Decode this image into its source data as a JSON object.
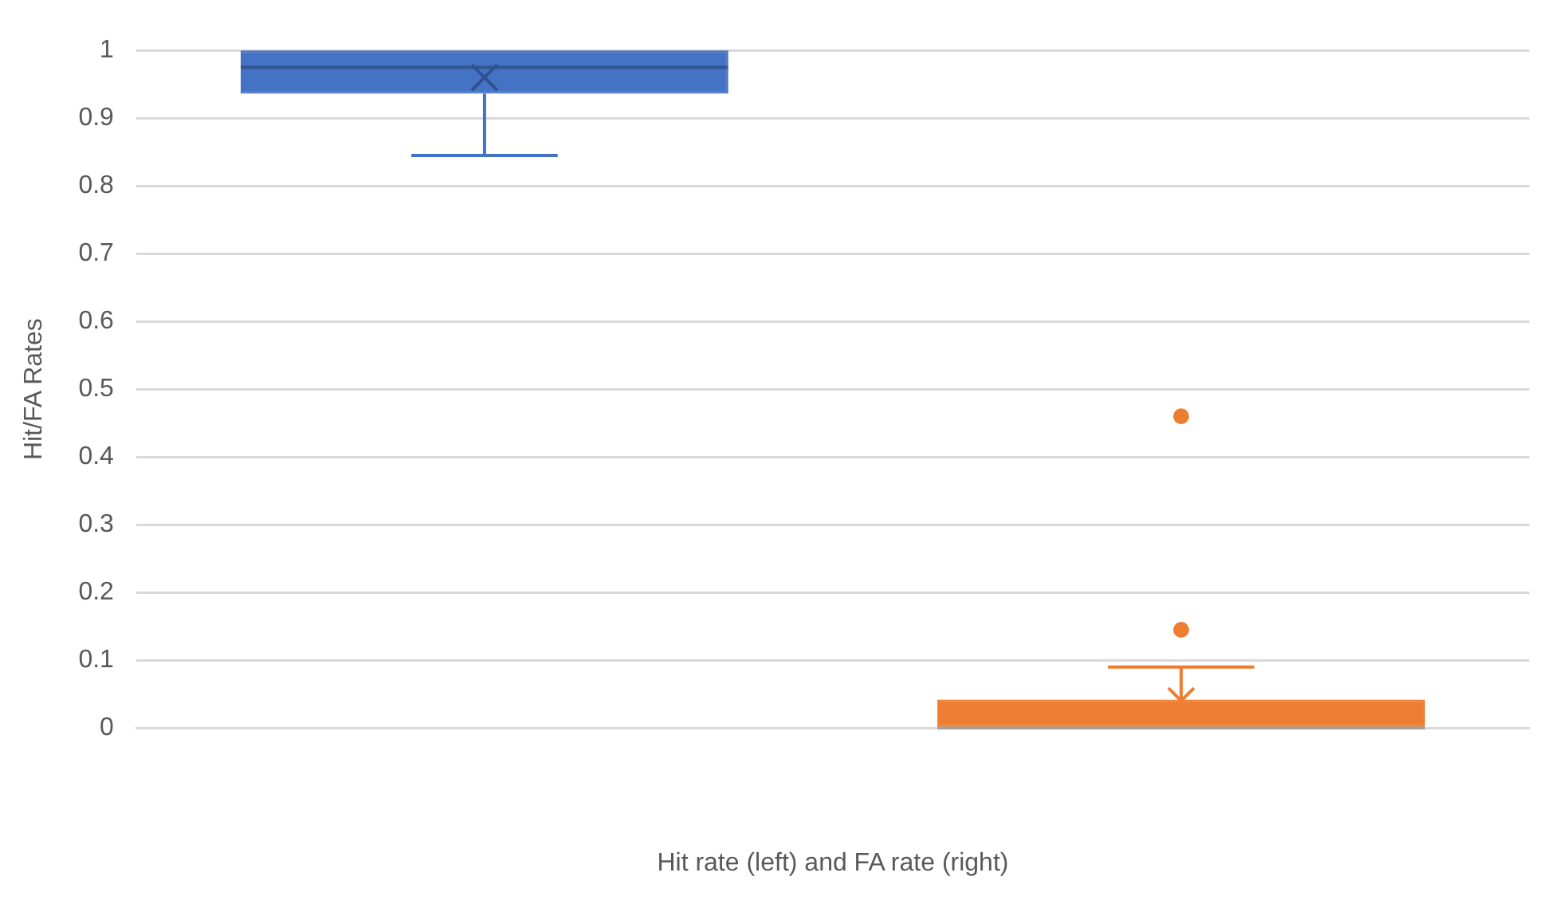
{
  "chart_data": {
    "type": "box",
    "xlabel": "Hit rate (left) and FA rate (right)",
    "ylabel": "Hit/FA Rates",
    "categories": [
      null,
      null
    ],
    "colors": [
      "#4472c4",
      "#ed7d31"
    ],
    "boxes": [
      {
        "low": 0.845,
        "q1": 0.936,
        "median": 0.975,
        "q3": 1,
        "high": 1,
        "mean": 0.96
      },
      {
        "low": 0,
        "q1": 0,
        "median": 0,
        "q3": 0.042,
        "high": 0.09,
        "mean": 0.04,
        "outliers": [
          0.145,
          0.46
        ]
      }
    ],
    "ylim": [
      0,
      1
    ],
    "yticks": [
      0,
      0.1,
      0.2,
      0.3,
      0.4,
      0.5,
      0.6,
      0.7,
      0.8,
      0.9,
      1
    ],
    "grid": "y",
    "legend": false,
    "marker": "cross"
  }
}
